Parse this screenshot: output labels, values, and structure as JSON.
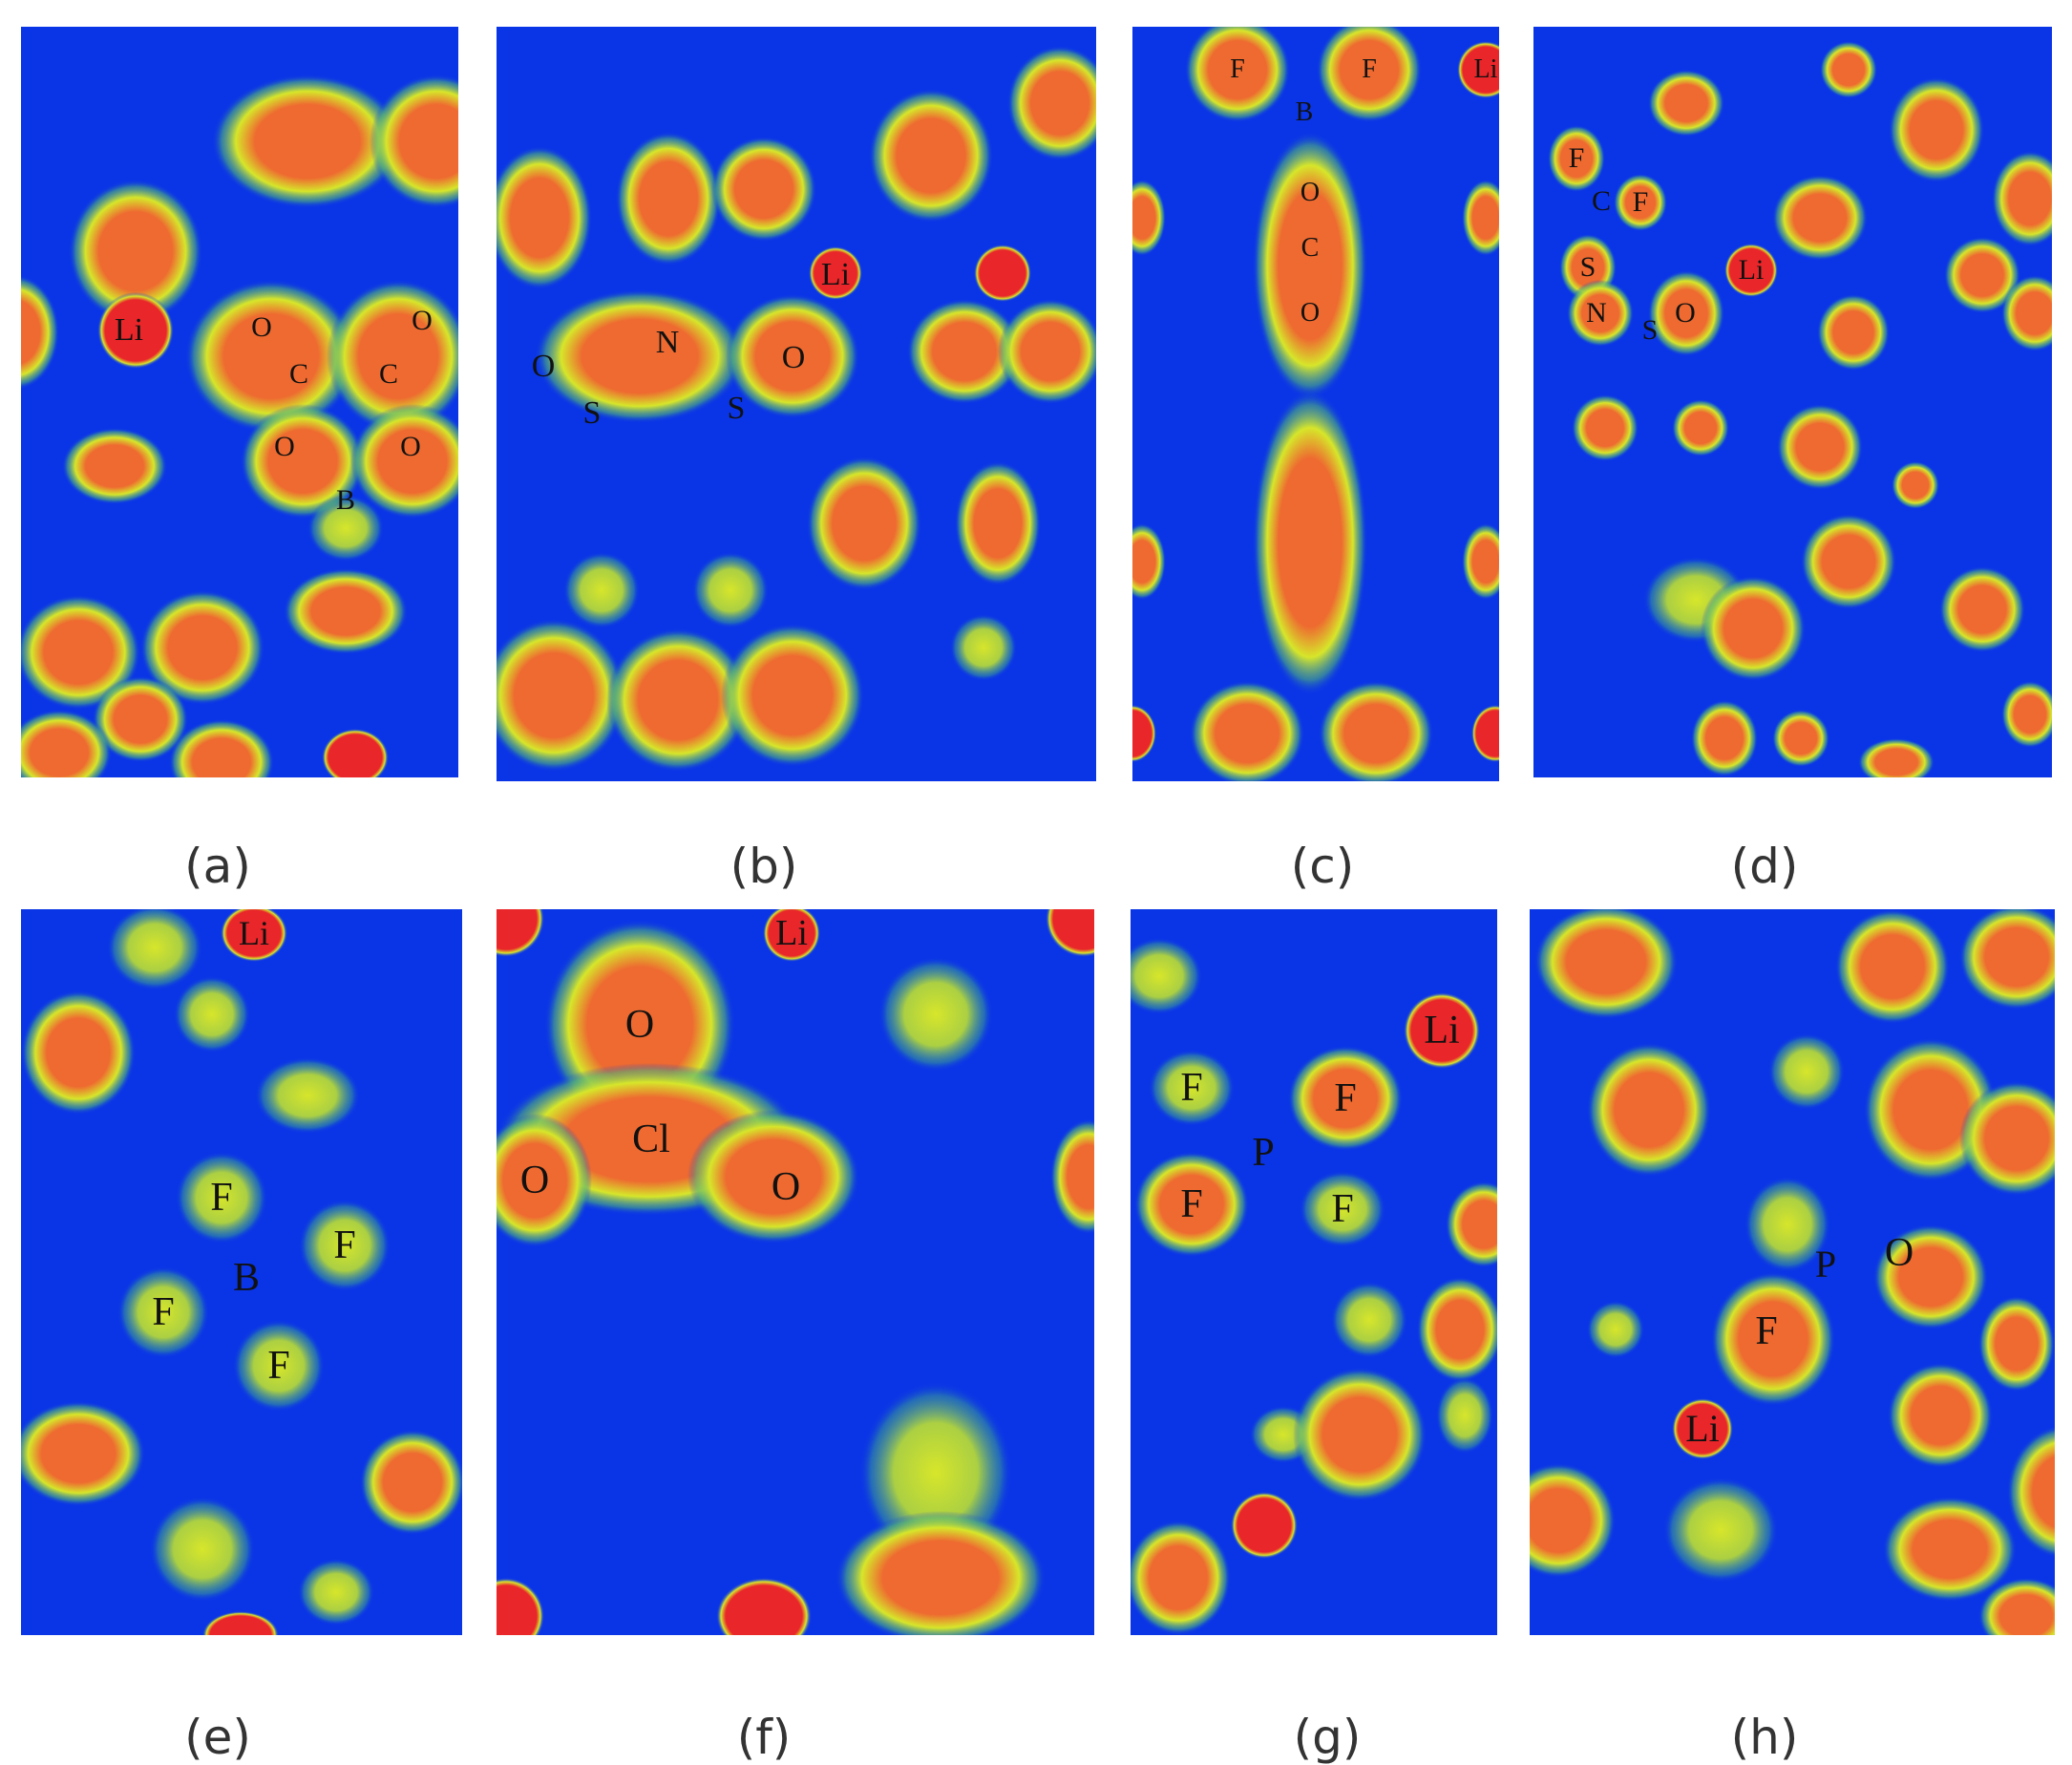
{
  "colors": {
    "background": "#0a35e6",
    "low": "#0a35e6",
    "mid": "#d7e62a",
    "high": "#ee6a30",
    "peak": "#e9262a"
  },
  "panels": [
    {
      "id": "a",
      "caption": "(a)",
      "labels": [
        "Li",
        "O",
        "O",
        "C",
        "C",
        "O",
        "O",
        "B"
      ]
    },
    {
      "id": "b",
      "caption": "(b)",
      "labels": [
        "Li",
        "N",
        "O",
        "O",
        "S",
        "S"
      ]
    },
    {
      "id": "c",
      "caption": "(c)",
      "labels": [
        "F",
        "F",
        "Li",
        "B",
        "O",
        "C",
        "O"
      ]
    },
    {
      "id": "d",
      "caption": "(d)",
      "labels": [
        "F",
        "C",
        "F",
        "S",
        "Li",
        "N",
        "S",
        "O"
      ]
    },
    {
      "id": "e",
      "caption": "(e)",
      "labels": [
        "Li",
        "F",
        "F",
        "B",
        "F",
        "F"
      ]
    },
    {
      "id": "f",
      "caption": "(f)",
      "labels": [
        "Li",
        "O",
        "Cl",
        "O",
        "O"
      ]
    },
    {
      "id": "g",
      "caption": "(g)",
      "labels": [
        "Li",
        "F",
        "F",
        "P",
        "F",
        "F"
      ]
    },
    {
      "id": "h",
      "caption": "(h)",
      "labels": [
        "P",
        "O",
        "F",
        "Li"
      ]
    }
  ]
}
